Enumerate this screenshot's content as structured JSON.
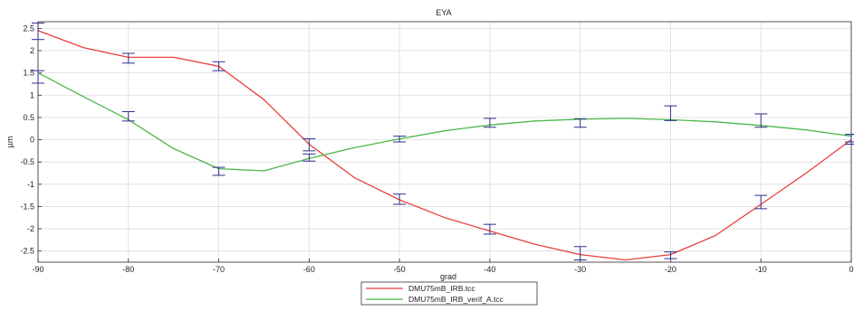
{
  "chart_data": {
    "type": "line",
    "title": "EYA",
    "xlabel": "grad",
    "ylabel": "µm",
    "xlim": [
      -90,
      0
    ],
    "ylim": [
      -2.75,
      2.65
    ],
    "grid": true,
    "legend_position": "bottom-center",
    "x_ticks": [
      -90,
      -80,
      -70,
      -60,
      -50,
      -40,
      -30,
      -20,
      -10,
      0
    ],
    "x_tick_labels": [
      "-90",
      "-80",
      "-70",
      "-60",
      "-50",
      "-40",
      "-30",
      "-20",
      "-10",
      "0"
    ],
    "y_ticks": [
      2.5,
      2,
      1.5,
      1,
      0.5,
      0,
      -0.5,
      -1,
      -1.5,
      -2,
      -2.5
    ],
    "y_tick_labels": [
      "2.5",
      "2",
      "1.5",
      "1",
      "0.5",
      "0",
      "-0.5",
      "-1",
      "-1.5",
      "-2",
      "-2.5"
    ],
    "series": [
      {
        "name": "DMU75mB_IRB.tcc",
        "color": "#e8413e",
        "x": [
          -90,
          -85,
          -80,
          -75,
          -70,
          -65,
          -60,
          -55,
          -50,
          -45,
          -40,
          -35,
          -30,
          -25,
          -20,
          -15,
          -10,
          -5,
          0
        ],
        "y": [
          2.45,
          2.07,
          1.85,
          1.85,
          1.65,
          0.9,
          -0.1,
          -0.85,
          -1.35,
          -1.75,
          -2.05,
          -2.35,
          -2.58,
          -2.7,
          -2.58,
          -2.15,
          -1.45,
          -0.75,
          0.0
        ],
        "errorbars": [
          {
            "x": -90,
            "low": 2.25,
            "high": 2.62
          },
          {
            "x": -80,
            "low": 1.72,
            "high": 1.94
          },
          {
            "x": -70,
            "low": 1.55,
            "high": 1.75
          },
          {
            "x": -60,
            "low": -0.25,
            "high": 0.02
          },
          {
            "x": -50,
            "low": -1.45,
            "high": -1.22
          },
          {
            "x": -40,
            "low": -2.12,
            "high": -1.9
          },
          {
            "x": -30,
            "low": -2.7,
            "high": -2.4
          },
          {
            "x": -20,
            "low": -2.67,
            "high": -2.52
          },
          {
            "x": -10,
            "low": -1.55,
            "high": -1.25
          },
          {
            "x": 0,
            "low": -0.1,
            "high": 0.12
          }
        ]
      },
      {
        "name": "DMU75mB_IRB_verif_A.tcc",
        "color": "#4db848",
        "x": [
          -90,
          -85,
          -80,
          -75,
          -70,
          -65,
          -60,
          -55,
          -50,
          -45,
          -40,
          -35,
          -30,
          -25,
          -20,
          -15,
          -10,
          -5,
          0
        ],
        "y": [
          1.5,
          0.97,
          0.45,
          -0.2,
          -0.65,
          -0.7,
          -0.42,
          -0.18,
          0.02,
          0.2,
          0.33,
          0.42,
          0.46,
          0.48,
          0.45,
          0.4,
          0.32,
          0.22,
          0.08
        ],
        "errorbars": [
          {
            "x": -90,
            "low": 1.27,
            "high": 1.55
          },
          {
            "x": -80,
            "low": 0.42,
            "high": 0.63
          },
          {
            "x": -70,
            "low": -0.8,
            "high": -0.62
          },
          {
            "x": -60,
            "low": -0.48,
            "high": -0.32
          },
          {
            "x": -50,
            "low": -0.05,
            "high": 0.08
          },
          {
            "x": -40,
            "low": 0.28,
            "high": 0.48
          },
          {
            "x": -30,
            "low": 0.28,
            "high": 0.47
          },
          {
            "x": -20,
            "low": 0.43,
            "high": 0.76
          },
          {
            "x": -10,
            "low": 0.28,
            "high": 0.58
          },
          {
            "x": 0,
            "low": -0.05,
            "high": 0.12
          }
        ]
      }
    ]
  }
}
